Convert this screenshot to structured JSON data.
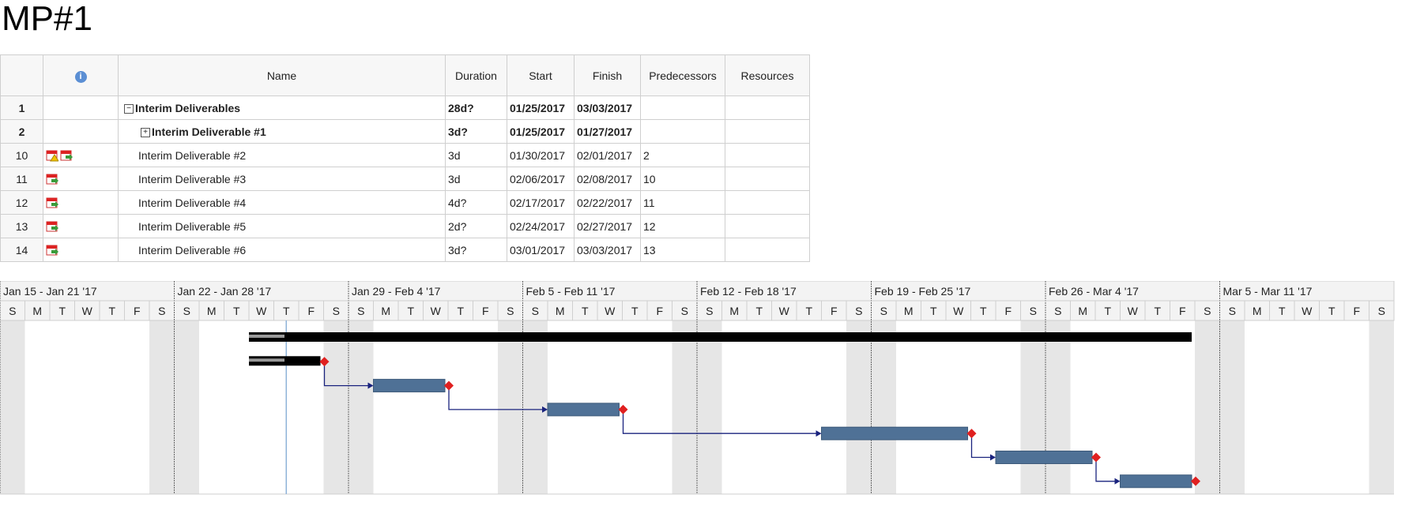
{
  "title": "MP#1",
  "columns": {
    "info_icon": "info-icon",
    "name": "Name",
    "duration": "Duration",
    "start": "Start",
    "finish": "Finish",
    "predecessors": "Predecessors",
    "resources": "Resources"
  },
  "rows": [
    {
      "id": "1",
      "name": "Interim Deliverables",
      "duration": "28d?",
      "start": "01/25/2017",
      "finish": "03/03/2017",
      "pred": "",
      "res": "",
      "summary": true,
      "toggle": "−"
    },
    {
      "id": "2",
      "name": "Interim Deliverable #1",
      "duration": "3d?",
      "start": "01/25/2017",
      "finish": "01/27/2017",
      "pred": "",
      "res": "",
      "summary": true,
      "toggle": "+"
    },
    {
      "id": "10",
      "name": "Interim Deliverable #2",
      "duration": "3d",
      "start": "01/30/2017",
      "finish": "02/01/2017",
      "pred": "2",
      "res": "",
      "icons": [
        "warning-calendar-icon",
        "calendar-arrow-icon"
      ]
    },
    {
      "id": "11",
      "name": "Interim Deliverable #3",
      "duration": "3d",
      "start": "02/06/2017",
      "finish": "02/08/2017",
      "pred": "10",
      "res": "",
      "icons": [
        "calendar-arrow-icon"
      ]
    },
    {
      "id": "12",
      "name": "Interim Deliverable #4",
      "duration": "4d?",
      "start": "02/17/2017",
      "finish": "02/22/2017",
      "pred": "11",
      "res": "",
      "icons": [
        "calendar-arrow-icon"
      ]
    },
    {
      "id": "13",
      "name": "Interim Deliverable #5",
      "duration": "2d?",
      "start": "02/24/2017",
      "finish": "02/27/2017",
      "pred": "12",
      "res": "",
      "icons": [
        "calendar-arrow-icon"
      ]
    },
    {
      "id": "14",
      "name": "Interim Deliverable #6",
      "duration": "3d?",
      "start": "03/01/2017",
      "finish": "03/03/2017",
      "pred": "13",
      "res": "",
      "icons": [
        "calendar-arrow-icon"
      ]
    }
  ],
  "timescale": {
    "weeks": [
      "Jan 15 - Jan 21 '17",
      "Jan 22 - Jan 28 '17",
      "Jan 29 - Feb 4 '17",
      "Feb 5 - Feb 11 '17",
      "Feb 12 - Feb 18 '17",
      "Feb 19 - Feb 25 '17",
      "Feb 26 - Mar 4 '17",
      "Mar 5 - Mar 11 '17"
    ],
    "days": [
      "S",
      "M",
      "T",
      "W",
      "T",
      "F",
      "S"
    ]
  },
  "chart_data": {
    "type": "gantt",
    "start_date": "2017-01-15",
    "today": "2017-01-26",
    "tasks": [
      {
        "row": "1",
        "start": "2017-01-25",
        "finish": "2017-03-03",
        "kind": "summary"
      },
      {
        "row": "2",
        "start": "2017-01-25",
        "finish": "2017-01-27",
        "kind": "summary"
      },
      {
        "row": "10",
        "start": "2017-01-30",
        "finish": "2017-02-01",
        "kind": "task"
      },
      {
        "row": "11",
        "start": "2017-02-06",
        "finish": "2017-02-08",
        "kind": "task"
      },
      {
        "row": "12",
        "start": "2017-02-17",
        "finish": "2017-02-22",
        "kind": "task"
      },
      {
        "row": "13",
        "start": "2017-02-24",
        "finish": "2017-02-27",
        "kind": "task"
      },
      {
        "row": "14",
        "start": "2017-03-01",
        "finish": "2017-03-03",
        "kind": "task"
      }
    ],
    "links": [
      [
        "2",
        "10"
      ],
      [
        "10",
        "11"
      ],
      [
        "11",
        "12"
      ],
      [
        "12",
        "13"
      ],
      [
        "13",
        "14"
      ]
    ],
    "colors": {
      "summary": "#000000",
      "task": "#4f7196",
      "milestone": "#e02020",
      "link": "#1a237e",
      "weekend": "#e6e6e6",
      "today": "#8fb3d9"
    }
  }
}
